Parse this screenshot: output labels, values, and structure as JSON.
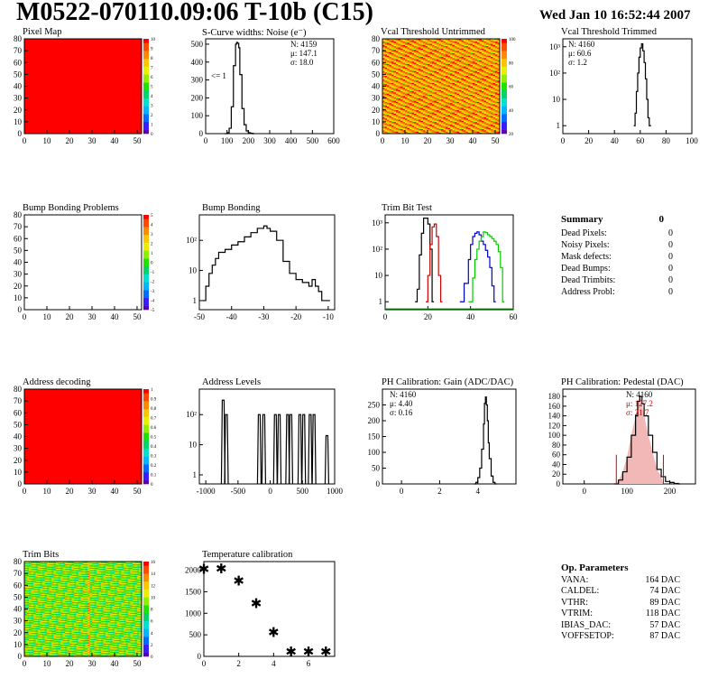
{
  "header": {
    "title": "M0522-070110.09:06 T-10b (C15)",
    "date": "Wed Jan 10 16:52:44 2007"
  },
  "colors": {
    "hist_line": "#000000",
    "red": "#cc0000",
    "blue": "#0000cc",
    "green": "#00cc00",
    "map_red": "#ff0000"
  },
  "panels": {
    "pixel_map": {
      "title": "Pixel Map",
      "xticks": [
        "0",
        "10",
        "20",
        "30",
        "40",
        "50"
      ],
      "yticks": [
        "0",
        "10",
        "20",
        "30",
        "40",
        "50",
        "60",
        "70",
        "80"
      ],
      "zticks": [
        "0",
        "1",
        "2",
        "3",
        "4",
        "5",
        "6",
        "7",
        "8",
        "9",
        "10"
      ]
    },
    "scurve": {
      "title": "S-Curve widths: Noise (e⁻)",
      "xticks": [
        "0",
        "100",
        "200",
        "300",
        "400",
        "500",
        "600"
      ],
      "yticks": [
        "0",
        "100",
        "200",
        "300",
        "400",
        "500"
      ],
      "annotation": "<= 1",
      "stats": [
        "N: 4159",
        "μ: 147.1",
        "σ: 18.0"
      ]
    },
    "vcal_untrimmed": {
      "title": "Vcal Threshold Untrimmed",
      "xticks": [
        "0",
        "10",
        "20",
        "30",
        "40",
        "50"
      ],
      "yticks": [
        "0",
        "10",
        "20",
        "30",
        "40",
        "50",
        "60",
        "70",
        "80"
      ],
      "zticks": [
        "20",
        "40",
        "60",
        "80",
        "100"
      ]
    },
    "vcal_trimmed": {
      "title": "Vcal Threshold Trimmed",
      "xticks": [
        "0",
        "20",
        "40",
        "60",
        "80",
        "100"
      ],
      "yticks": [
        "1",
        "10",
        "10²",
        "10³"
      ],
      "stats": [
        "N: 4160",
        "μ: 60.6",
        "σ:  1.2"
      ]
    },
    "bump_problems": {
      "title": "Bump Bonding Problems",
      "xticks": [
        "0",
        "10",
        "20",
        "30",
        "40",
        "50"
      ],
      "yticks": [
        "0",
        "10",
        "20",
        "30",
        "40",
        "50",
        "60",
        "70",
        "80"
      ],
      "zticks": [
        "-5",
        "-4",
        "-3",
        "-2",
        "-1",
        "0",
        "1",
        "2",
        "3",
        "4",
        "5"
      ]
    },
    "bump_bonding": {
      "title": "Bump Bonding",
      "xticks": [
        "-50",
        "-40",
        "-30",
        "-20",
        "-10"
      ],
      "yticks": [
        "1",
        "10",
        "10²"
      ]
    },
    "trim_bit_test": {
      "title": "Trim Bit Test",
      "xticks": [
        "0",
        "20",
        "40",
        "60"
      ],
      "yticks": [
        "1",
        "10",
        "10²",
        "10³"
      ]
    },
    "summary": {
      "title": "Summary",
      "value": "0",
      "rows": [
        {
          "label": "Dead Pixels:",
          "value": "0"
        },
        {
          "label": "Noisy Pixels:",
          "value": "0"
        },
        {
          "label": "Mask defects:",
          "value": "0"
        },
        {
          "label": "Dead Bumps:",
          "value": "0"
        },
        {
          "label": "Dead Trimbits:",
          "value": "0"
        },
        {
          "label": "Address Probl:",
          "value": "0"
        }
      ]
    },
    "address_decoding": {
      "title": "Address decoding",
      "xticks": [
        "0",
        "10",
        "20",
        "30",
        "40",
        "50"
      ],
      "yticks": [
        "0",
        "10",
        "20",
        "30",
        "40",
        "50",
        "60",
        "70",
        "80"
      ],
      "zticks": [
        "0",
        "0.1",
        "0.2",
        "0.3",
        "0.4",
        "0.5",
        "0.6",
        "0.7",
        "0.8",
        "0.9",
        "1"
      ]
    },
    "address_levels": {
      "title": "Address Levels",
      "xticks": [
        "-1000",
        "-500",
        "0",
        "500",
        "1000"
      ],
      "yticks": [
        "1",
        "10",
        "10²"
      ]
    },
    "ph_gain": {
      "title": "PH Calibration: Gain (ADC/DAC)",
      "xticks": [
        "0",
        "2",
        "4"
      ],
      "yticks": [
        "0",
        "50",
        "100",
        "150",
        "200",
        "250"
      ],
      "stats": [
        "N: 4160",
        "μ: 4.40",
        "σ: 0.16"
      ]
    },
    "ph_pedestal": {
      "title": "PH Calibration: Pedestal (DAC)",
      "xticks": [
        "0",
        "100",
        "200"
      ],
      "yticks": [
        "0",
        "20",
        "40",
        "60",
        "80",
        "100",
        "120",
        "140",
        "160",
        "180"
      ],
      "stats": [
        "N: 4160",
        "μ: 127.2",
        "σ: 21.7"
      ]
    },
    "trim_bits": {
      "title": "Trim Bits",
      "xticks": [
        "0",
        "10",
        "20",
        "30",
        "40",
        "50"
      ],
      "yticks": [
        "0",
        "10",
        "20",
        "30",
        "40",
        "50",
        "60",
        "70",
        "80"
      ],
      "zticks": [
        "0",
        "2",
        "4",
        "6",
        "8",
        "10",
        "12",
        "14",
        "16"
      ]
    },
    "temp_cal": {
      "title": "Temperature calibration",
      "xticks": [
        "0",
        "2",
        "4",
        "6"
      ],
      "yticks": [
        "0",
        "500",
        "1000",
        "1500",
        "2000"
      ]
    },
    "op_params": {
      "title": "Op. Parameters",
      "rows": [
        {
          "label": "VANA:",
          "value": "164 DAC"
        },
        {
          "label": "CALDEL:",
          "value": "74 DAC"
        },
        {
          "label": "VTHR:",
          "value": "89 DAC"
        },
        {
          "label": "VTRIM:",
          "value": "118 DAC"
        },
        {
          "label": "IBIAS_DAC:",
          "value": "57 DAC"
        },
        {
          "label": "VOFFSETOP:",
          "value": "87 DAC"
        }
      ]
    }
  },
  "chart_data": [
    {
      "type": "heatmap",
      "title": "Pixel Map",
      "xlim": [
        0,
        52
      ],
      "ylim": [
        0,
        80
      ],
      "zlim": [
        0,
        10
      ],
      "uniform_value": 10
    },
    {
      "type": "line",
      "title": "S-Curve widths: Noise (e⁻)",
      "xlim": [
        0,
        600
      ],
      "ylim": [
        0,
        530
      ],
      "x": [
        90,
        100,
        110,
        120,
        130,
        140,
        145,
        150,
        155,
        160,
        170,
        180,
        190,
        200,
        210,
        220
      ],
      "y": [
        0,
        5,
        30,
        150,
        380,
        500,
        510,
        505,
        480,
        330,
        140,
        50,
        15,
        5,
        2,
        0
      ]
    },
    {
      "type": "heatmap",
      "title": "Vcal Threshold Untrimmed",
      "xlim": [
        0,
        52
      ],
      "ylim": [
        0,
        80
      ],
      "zlim": [
        0,
        110
      ],
      "typical_value_range": [
        70,
        110
      ]
    },
    {
      "type": "line",
      "title": "Vcal Threshold Trimmed",
      "log_y": true,
      "xlim": [
        0,
        100
      ],
      "ylim": [
        0.5,
        2000
      ],
      "x": [
        55,
        56,
        57,
        58,
        59,
        60,
        61,
        62,
        63,
        64,
        65,
        66,
        67
      ],
      "y": [
        1,
        3,
        20,
        100,
        400,
        900,
        1300,
        700,
        250,
        60,
        10,
        2,
        1
      ]
    },
    {
      "type": "heatmap",
      "title": "Bump Bonding Problems",
      "xlim": [
        0,
        52
      ],
      "ylim": [
        0,
        80
      ],
      "zlim": [
        -5,
        5
      ],
      "empty": true
    },
    {
      "type": "line",
      "title": "Bump Bonding",
      "log_y": true,
      "xlim": [
        -50,
        -8
      ],
      "ylim": [
        0.5,
        700
      ],
      "x": [
        -49,
        -48,
        -47,
        -46,
        -45,
        -44,
        -42,
        -40,
        -38,
        -36,
        -34,
        -32,
        -30,
        -29,
        -28,
        -26,
        -24,
        -22,
        -20,
        -18,
        -16,
        -15,
        -14,
        -13,
        -12,
        -11,
        -10
      ],
      "y": [
        1,
        3,
        8,
        15,
        25,
        40,
        50,
        70,
        90,
        130,
        180,
        250,
        300,
        250,
        200,
        100,
        20,
        8,
        5,
        4,
        3,
        5,
        3,
        2,
        1,
        1,
        1
      ]
    },
    {
      "type": "line",
      "title": "Trim Bit Test",
      "log_y": true,
      "xlim": [
        0,
        60
      ],
      "ylim": [
        0.5,
        2000
      ],
      "series": [
        {
          "name": "",
          "color": "#000000",
          "x": [
            14,
            15,
            16,
            17,
            18,
            19,
            20,
            21,
            22
          ],
          "y": [
            1,
            3,
            60,
            400,
            1500,
            1500,
            900,
            100,
            1
          ]
        },
        {
          "name": "",
          "color": "#cc0000",
          "x": [
            19,
            20,
            21,
            22,
            23,
            24,
            25,
            26
          ],
          "y": [
            1,
            10,
            150,
            700,
            900,
            300,
            10,
            1
          ]
        },
        {
          "name": "",
          "color": "#0000cc",
          "x": [
            35,
            37,
            39,
            40,
            41,
            42,
            43,
            44,
            45,
            46,
            47,
            48,
            49,
            50,
            51
          ],
          "y": [
            1,
            5,
            40,
            150,
            300,
            400,
            450,
            350,
            200,
            150,
            90,
            50,
            20,
            4,
            1
          ]
        },
        {
          "name": "",
          "color": "#00cc00",
          "x": [
            39,
            41,
            42,
            43,
            44,
            45,
            46,
            47,
            48,
            49,
            50,
            51,
            52,
            53,
            54,
            55
          ],
          "y": [
            1,
            8,
            40,
            100,
            200,
            300,
            450,
            420,
            350,
            300,
            250,
            200,
            150,
            80,
            20,
            1
          ]
        }
      ]
    },
    {
      "type": "heatmap",
      "title": "Address decoding",
      "xlim": [
        0,
        52
      ],
      "ylim": [
        0,
        80
      ],
      "zlim": [
        0,
        1
      ],
      "uniform_value": 1
    },
    {
      "type": "line",
      "title": "Address Levels",
      "log_y": true,
      "xlim": [
        -1100,
        1000
      ],
      "ylim": [
        0.5,
        700
      ],
      "peaks": [
        -730,
        -680,
        -170,
        -100,
        80,
        140,
        270,
        320,
        460,
        520,
        620,
        680,
        880
      ]
    },
    {
      "type": "line",
      "title": "PH Calibration: Gain (ADC/DAC)",
      "xlim": [
        -1,
        6
      ],
      "ylim": [
        0,
        300
      ],
      "x": [
        3.8,
        3.9,
        4.0,
        4.1,
        4.2,
        4.3,
        4.35,
        4.4,
        4.45,
        4.5,
        4.55,
        4.6,
        4.7,
        4.8,
        4.9
      ],
      "y": [
        0,
        5,
        20,
        50,
        110,
        190,
        255,
        275,
        250,
        200,
        130,
        80,
        25,
        5,
        0
      ]
    },
    {
      "type": "line",
      "title": "PH Calibration: Pedestal (DAC)",
      "xlim": [
        -50,
        260
      ],
      "ylim": [
        0,
        195
      ],
      "x": [
        70,
        80,
        90,
        100,
        110,
        120,
        125,
        130,
        135,
        140,
        150,
        160,
        170,
        180,
        190,
        200,
        210,
        220
      ],
      "y": [
        0,
        8,
        25,
        55,
        100,
        140,
        170,
        180,
        165,
        140,
        100,
        65,
        30,
        15,
        5,
        3,
        1,
        0
      ],
      "fit_range": [
        75,
        185
      ]
    },
    {
      "type": "heatmap",
      "title": "Trim Bits",
      "xlim": [
        0,
        52
      ],
      "ylim": [
        0,
        80
      ],
      "zlim": [
        0,
        16
      ],
      "typical_value_range": [
        6,
        12
      ]
    },
    {
      "type": "scatter",
      "title": "Temperature calibration",
      "xlim": [
        0,
        7.5
      ],
      "ylim": [
        0,
        2200
      ],
      "x": [
        0,
        1,
        2,
        3,
        4,
        5,
        6,
        7
      ],
      "y": [
        2020,
        2030,
        1750,
        1230,
        560,
        110,
        110,
        110
      ]
    }
  ]
}
